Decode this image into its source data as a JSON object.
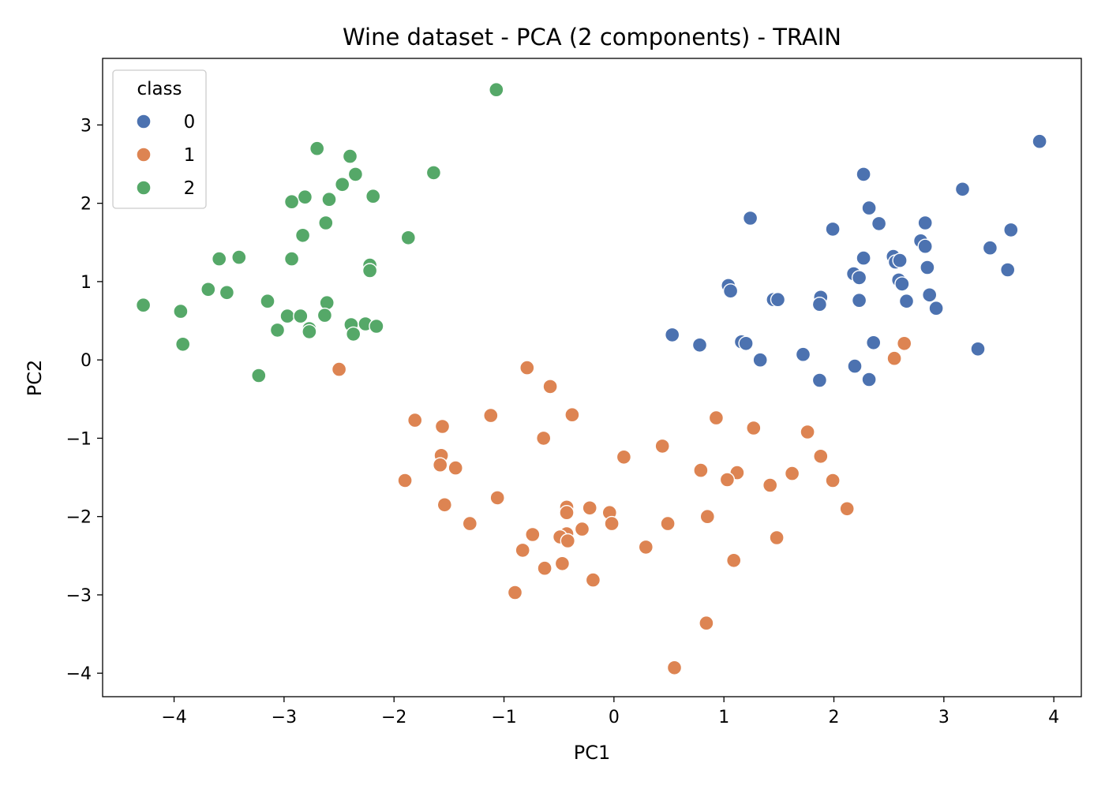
{
  "chart_data": {
    "type": "scatter",
    "title": "Wine dataset - PCA (2 components) - TRAIN",
    "xlabel": "PC1",
    "ylabel": "PC2",
    "xlim": [
      -4.65,
      4.25
    ],
    "ylim": [
      -4.3,
      3.85
    ],
    "xticks": [
      -4,
      -3,
      -2,
      -1,
      0,
      1,
      2,
      3,
      4
    ],
    "yticks": [
      -4,
      -3,
      -2,
      -1,
      0,
      1,
      2,
      3
    ],
    "tick_labels_x": [
      "−4",
      "−3",
      "−2",
      "−1",
      "0",
      "1",
      "2",
      "3",
      "4"
    ],
    "tick_labels_y": [
      "−4",
      "−3",
      "−2",
      "−1",
      "0",
      "1",
      "2",
      "3"
    ],
    "grid": false,
    "legend": {
      "title": "class",
      "placement": "top-left"
    },
    "series": [
      {
        "name": "0",
        "color": "#4c72b0",
        "points": [
          [
            3.87,
            2.79
          ],
          [
            3.17,
            2.18
          ],
          [
            2.27,
            2.37
          ],
          [
            2.32,
            1.94
          ],
          [
            2.41,
            1.74
          ],
          [
            2.83,
            1.75
          ],
          [
            1.24,
            1.81
          ],
          [
            1.99,
            1.67
          ],
          [
            3.61,
            1.66
          ],
          [
            3.42,
            1.43
          ],
          [
            2.79,
            1.52
          ],
          [
            2.83,
            1.45
          ],
          [
            2.27,
            1.3
          ],
          [
            2.54,
            1.32
          ],
          [
            2.56,
            1.25
          ],
          [
            2.6,
            1.27
          ],
          [
            2.85,
            1.18
          ],
          [
            2.18,
            1.1
          ],
          [
            2.23,
            1.05
          ],
          [
            3.58,
            1.15
          ],
          [
            2.59,
            1.02
          ],
          [
            2.62,
            0.97
          ],
          [
            1.04,
            0.95
          ],
          [
            1.06,
            0.88
          ],
          [
            2.87,
            0.83
          ],
          [
            1.88,
            0.8
          ],
          [
            1.87,
            0.71
          ],
          [
            1.45,
            0.77
          ],
          [
            1.49,
            0.77
          ],
          [
            2.23,
            0.76
          ],
          [
            2.66,
            0.75
          ],
          [
            2.93,
            0.66
          ],
          [
            0.53,
            0.32
          ],
          [
            0.78,
            0.19
          ],
          [
            1.16,
            0.23
          ],
          [
            1.2,
            0.21
          ],
          [
            2.36,
            0.22
          ],
          [
            3.31,
            0.14
          ],
          [
            1.72,
            0.07
          ],
          [
            1.33,
            0.0
          ],
          [
            2.19,
            -0.08
          ],
          [
            1.87,
            -0.26
          ],
          [
            2.32,
            -0.25
          ]
        ]
      },
      {
        "name": "1",
        "color": "#dd8452",
        "points": [
          [
            2.64,
            0.21
          ],
          [
            2.55,
            0.02
          ],
          [
            -2.5,
            -0.12
          ],
          [
            -0.79,
            -0.1
          ],
          [
            -0.58,
            -0.34
          ],
          [
            -0.38,
            -0.7
          ],
          [
            -1.12,
            -0.71
          ],
          [
            -1.81,
            -0.77
          ],
          [
            -1.56,
            -0.85
          ],
          [
            0.93,
            -0.74
          ],
          [
            1.27,
            -0.87
          ],
          [
            1.76,
            -0.92
          ],
          [
            -0.64,
            -1.0
          ],
          [
            0.44,
            -1.1
          ],
          [
            -1.57,
            -1.22
          ],
          [
            -1.58,
            -1.34
          ],
          [
            -1.44,
            -1.38
          ],
          [
            0.09,
            -1.24
          ],
          [
            1.88,
            -1.23
          ],
          [
            0.79,
            -1.41
          ],
          [
            1.12,
            -1.44
          ],
          [
            1.03,
            -1.53
          ],
          [
            1.62,
            -1.45
          ],
          [
            1.99,
            -1.54
          ],
          [
            -1.9,
            -1.54
          ],
          [
            1.42,
            -1.6
          ],
          [
            -1.06,
            -1.76
          ],
          [
            -1.54,
            -1.85
          ],
          [
            -0.43,
            -1.88
          ],
          [
            -0.22,
            -1.89
          ],
          [
            2.12,
            -1.9
          ],
          [
            -0.43,
            -1.95
          ],
          [
            -0.04,
            -1.95
          ],
          [
            -0.02,
            -2.09
          ],
          [
            0.49,
            -2.09
          ],
          [
            0.85,
            -2.0
          ],
          [
            -1.31,
            -2.09
          ],
          [
            -0.29,
            -2.16
          ],
          [
            -0.74,
            -2.23
          ],
          [
            -0.43,
            -2.22
          ],
          [
            -0.49,
            -2.26
          ],
          [
            -0.42,
            -2.31
          ],
          [
            1.48,
            -2.27
          ],
          [
            0.29,
            -2.39
          ],
          [
            -0.83,
            -2.43
          ],
          [
            1.09,
            -2.56
          ],
          [
            -0.47,
            -2.6
          ],
          [
            -0.63,
            -2.66
          ],
          [
            -0.19,
            -2.81
          ],
          [
            -0.9,
            -2.97
          ],
          [
            0.84,
            -3.36
          ],
          [
            0.55,
            -3.93
          ]
        ]
      },
      {
        "name": "2",
        "color": "#55a868",
        "points": [
          [
            -1.07,
            3.45
          ],
          [
            -2.7,
            2.7
          ],
          [
            -2.4,
            2.6
          ],
          [
            -1.64,
            2.39
          ],
          [
            -2.35,
            2.37
          ],
          [
            -2.47,
            2.24
          ],
          [
            -2.19,
            2.09
          ],
          [
            -2.81,
            2.08
          ],
          [
            -2.59,
            2.05
          ],
          [
            -2.93,
            2.02
          ],
          [
            -2.62,
            1.75
          ],
          [
            -2.83,
            1.59
          ],
          [
            -1.87,
            1.56
          ],
          [
            -3.41,
            1.31
          ],
          [
            -3.59,
            1.29
          ],
          [
            -2.93,
            1.29
          ],
          [
            -2.22,
            1.21
          ],
          [
            -2.22,
            1.14
          ],
          [
            -3.69,
            0.9
          ],
          [
            -3.52,
            0.86
          ],
          [
            -3.15,
            0.75
          ],
          [
            -2.61,
            0.73
          ],
          [
            -4.28,
            0.7
          ],
          [
            -3.94,
            0.62
          ],
          [
            -2.97,
            0.56
          ],
          [
            -2.85,
            0.56
          ],
          [
            -2.63,
            0.57
          ],
          [
            -2.39,
            0.45
          ],
          [
            -2.26,
            0.46
          ],
          [
            -2.16,
            0.43
          ],
          [
            -2.77,
            0.4
          ],
          [
            -2.77,
            0.36
          ],
          [
            -3.06,
            0.38
          ],
          [
            -2.37,
            0.33
          ],
          [
            -3.92,
            0.2
          ],
          [
            -3.23,
            -0.2
          ]
        ]
      }
    ]
  }
}
